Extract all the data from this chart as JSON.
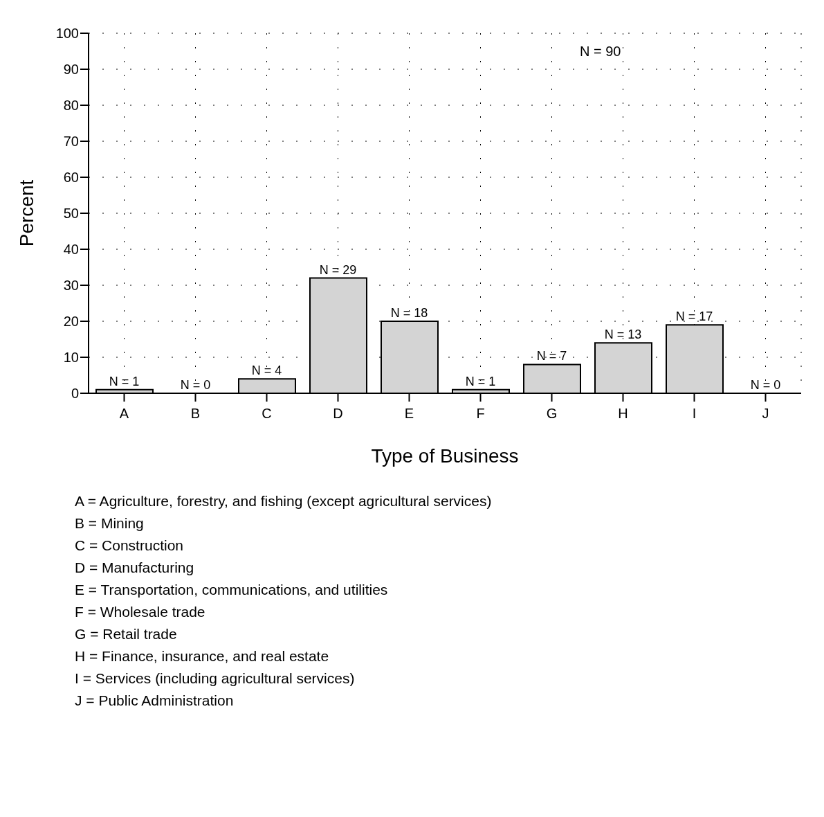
{
  "chart_data": {
    "type": "bar",
    "xlabel": "Type of Business",
    "ylabel": "Percent",
    "categories": [
      "A",
      "B",
      "C",
      "D",
      "E",
      "F",
      "G",
      "H",
      "I",
      "J"
    ],
    "values": [
      1,
      0,
      4,
      32,
      20,
      1,
      8,
      14,
      19,
      0
    ],
    "color": "#d4d4d4",
    "ylim": [
      0,
      100
    ],
    "yticks": [
      0,
      10,
      20,
      30,
      40,
      50,
      60,
      70,
      80,
      90,
      100
    ],
    "grid": true,
    "annotations": [
      {
        "text": "N = 1",
        "x": "A",
        "y": 1
      },
      {
        "text": "N = 0",
        "x": "B",
        "y": 0
      },
      {
        "text": "N = 4",
        "x": "C",
        "y": 4
      },
      {
        "text": "N = 29",
        "x": "D",
        "y": 32
      },
      {
        "text": "N = 18",
        "x": "E",
        "y": 20
      },
      {
        "text": "N = 1",
        "x": "F",
        "y": 1
      },
      {
        "text": "N = 7",
        "x": "G",
        "y": 8
      },
      {
        "text": "N = 13",
        "x": "H",
        "y": 14
      },
      {
        "text": "N = 17",
        "x": "I",
        "y": 19
      },
      {
        "text": "N = 0",
        "x": "J",
        "y": 0
      },
      "N = 90",
      "A = Agriculture, forestry, and fishing (except agricultural services)",
      "B = Mining",
      "C = Construction",
      "D = Manufacturing",
      "E = Transportation, communications, and utilities",
      "F = Wholesale trade",
      "G = Retail trade",
      "H = Finance, insurance, and real estate",
      "I = Services (including agricultural services)",
      "J = Public Administration"
    ]
  }
}
